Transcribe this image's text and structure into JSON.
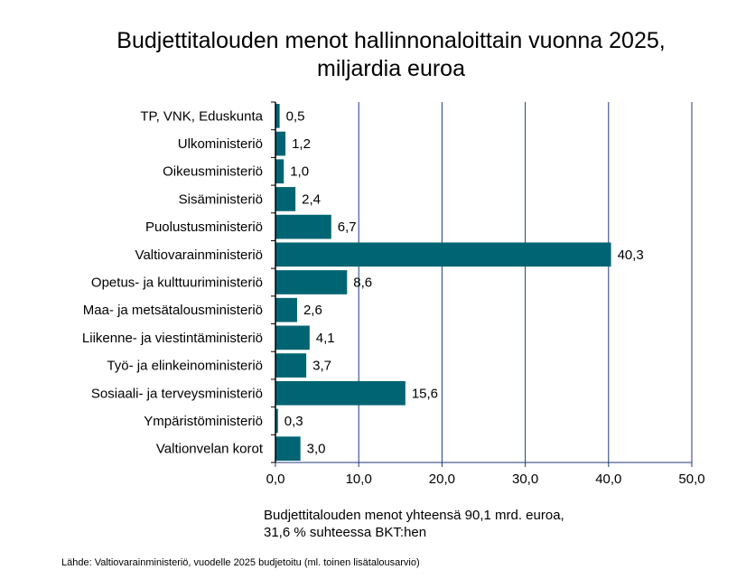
{
  "chart_data": {
    "type": "bar",
    "orientation": "horizontal",
    "title": "Budjettitalouden menot hallinnonaloittain vuonna 2025, miljardia euroa",
    "title_lines": [
      "Budjettitalouden menot hallinnonaloittain vuonna 2025,",
      "miljardia euroa"
    ],
    "categories": [
      "TP, VNK, Eduskunta",
      "Ulkoministeriö",
      "Oikeusministeriö",
      "Sisäministeriö",
      "Puolustusministeriö",
      "Valtiovarainministeriö",
      "Opetus- ja kulttuuriministeriö",
      "Maa- ja metsätalousministeriö",
      "Liikenne- ja viestintäministeriö",
      "Työ- ja elinkeinoministeriö",
      "Sosiaali- ja terveysministeriö",
      "Ympäristöministeriö",
      "Valtionvelan korot"
    ],
    "values": [
      0.5,
      1.2,
      1.0,
      2.4,
      6.7,
      40.3,
      8.6,
      2.6,
      4.1,
      3.7,
      15.6,
      0.3,
      3.0
    ],
    "data_labels": [
      "0,5",
      "1,2",
      "1,0",
      "2,4",
      "6,7",
      "40,3",
      "8,6",
      "2,6",
      "4,1",
      "3,7",
      "15,6",
      "0,3",
      "3,0"
    ],
    "xlim": [
      0,
      50
    ],
    "x_ticks": [
      "0,0",
      "10,0",
      "20,0",
      "30,0",
      "40,0",
      "50,0"
    ],
    "grid": true,
    "bar_color": "#006472",
    "grid_color": "#1f3a7a",
    "note_lines": [
      "Budjettitalouden menot yhteensä 90,1 mrd. euroa,",
      "31,6 % suhteessa BKT:hen"
    ],
    "source": "Lähde: Valtiovarainministeriö, vuodelle 2025 budjetoitu (ml. toinen lisätalousarvio)"
  }
}
